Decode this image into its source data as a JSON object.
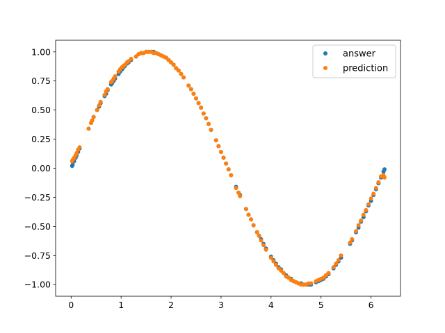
{
  "chart_data": {
    "type": "scatter",
    "title": "",
    "xlabel": "",
    "ylabel": "",
    "xlim": [
      -0.31,
      6.59
    ],
    "ylim": [
      -1.1,
      1.1
    ],
    "xticks": [
      0,
      1,
      2,
      3,
      4,
      5,
      6
    ],
    "yticks": [
      -1.0,
      -0.75,
      -0.5,
      -0.25,
      0.0,
      0.25,
      0.5,
      0.75,
      1.0
    ],
    "xtick_labels": [
      "0",
      "1",
      "2",
      "3",
      "4",
      "5",
      "6"
    ],
    "ytick_labels": [
      "−1.00",
      "−0.75",
      "−0.50",
      "−0.25",
      "0.00",
      "0.25",
      "0.50",
      "0.75",
      "1.00"
    ],
    "grid": false,
    "legend_position": "upper right",
    "series": [
      {
        "name": "answer",
        "color": "#1f77b4",
        "x": [
          0.02,
          0.03,
          0.06,
          0.09,
          0.11,
          0.14,
          0.17,
          0.35,
          0.4,
          0.42,
          0.45,
          0.52,
          0.56,
          0.59,
          0.67,
          0.7,
          0.73,
          0.8,
          0.82,
          0.85,
          0.88,
          0.95,
          0.98,
          1.02,
          1.05,
          1.08,
          1.12,
          1.15,
          1.2,
          1.3,
          1.35,
          1.4,
          1.45,
          1.5,
          1.55,
          1.6,
          1.65,
          1.7,
          1.75,
          1.8,
          1.85,
          1.9,
          1.95,
          2.0,
          2.05,
          2.1,
          2.15,
          2.2,
          2.25,
          2.35,
          2.4,
          2.45,
          2.5,
          2.55,
          2.6,
          2.65,
          2.7,
          2.75,
          2.8,
          2.9,
          2.95,
          3.0,
          3.05,
          3.1,
          3.15,
          3.2,
          3.3,
          3.35,
          3.38,
          3.5,
          3.55,
          3.6,
          3.65,
          3.72,
          3.76,
          3.8,
          3.85,
          3.9,
          4.0,
          4.05,
          4.1,
          4.15,
          4.2,
          4.25,
          4.3,
          4.35,
          4.4,
          4.45,
          4.5,
          4.55,
          4.6,
          4.65,
          4.7,
          4.75,
          4.8,
          4.9,
          4.95,
          5.0,
          5.05,
          5.1,
          5.15,
          5.25,
          5.3,
          5.35,
          5.4,
          5.58,
          5.62,
          5.7,
          5.75,
          5.8,
          5.85,
          5.9,
          5.95,
          6.0,
          6.05,
          6.1,
          6.15,
          6.2,
          6.25,
          6.27
        ],
        "y": [
          0.02,
          0.03,
          0.06,
          0.09,
          0.11,
          0.14,
          0.17,
          0.34,
          0.39,
          0.41,
          0.44,
          0.5,
          0.53,
          0.56,
          0.62,
          0.64,
          0.67,
          0.72,
          0.73,
          0.75,
          0.77,
          0.81,
          0.83,
          0.85,
          0.87,
          0.88,
          0.9,
          0.91,
          0.93,
          0.96,
          0.98,
          0.99,
          0.99,
          1.0,
          1.0,
          1.0,
          1.0,
          0.99,
          0.98,
          0.97,
          0.96,
          0.95,
          0.93,
          0.91,
          0.89,
          0.86,
          0.84,
          0.81,
          0.78,
          0.71,
          0.68,
          0.64,
          0.6,
          0.56,
          0.52,
          0.47,
          0.43,
          0.38,
          0.33,
          0.24,
          0.19,
          0.14,
          0.09,
          0.04,
          -0.01,
          -0.06,
          -0.16,
          -0.21,
          -0.23,
          -0.35,
          -0.4,
          -0.44,
          -0.49,
          -0.55,
          -0.58,
          -0.61,
          -0.65,
          -0.69,
          -0.76,
          -0.79,
          -0.82,
          -0.85,
          -0.87,
          -0.9,
          -0.92,
          -0.94,
          -0.95,
          -0.97,
          -0.98,
          -0.99,
          -0.99,
          -1.0,
          -1.0,
          -1.0,
          -1.0,
          -0.98,
          -0.97,
          -0.96,
          -0.95,
          -0.93,
          -0.91,
          -0.86,
          -0.83,
          -0.8,
          -0.77,
          -0.65,
          -0.62,
          -0.55,
          -0.51,
          -0.46,
          -0.42,
          -0.37,
          -0.32,
          -0.28,
          -0.23,
          -0.18,
          -0.13,
          -0.08,
          -0.03,
          -0.01
        ]
      },
      {
        "name": "prediction",
        "color": "#ff7f0e",
        "x": [
          0.02,
          0.03,
          0.06,
          0.09,
          0.11,
          0.14,
          0.17,
          0.35,
          0.4,
          0.42,
          0.45,
          0.52,
          0.56,
          0.59,
          0.67,
          0.7,
          0.73,
          0.8,
          0.82,
          0.85,
          0.88,
          0.95,
          0.98,
          1.02,
          1.05,
          1.08,
          1.12,
          1.15,
          1.2,
          1.3,
          1.35,
          1.4,
          1.45,
          1.5,
          1.55,
          1.6,
          1.65,
          1.7,
          1.75,
          1.8,
          1.85,
          1.9,
          1.95,
          2.0,
          2.05,
          2.1,
          2.15,
          2.2,
          2.25,
          2.35,
          2.4,
          2.45,
          2.5,
          2.55,
          2.6,
          2.65,
          2.7,
          2.75,
          2.8,
          2.9,
          2.95,
          3.0,
          3.05,
          3.1,
          3.15,
          3.2,
          3.3,
          3.35,
          3.38,
          3.5,
          3.55,
          3.6,
          3.65,
          3.72,
          3.76,
          3.8,
          3.85,
          3.9,
          4.0,
          4.05,
          4.1,
          4.15,
          4.2,
          4.25,
          4.3,
          4.35,
          4.4,
          4.45,
          4.5,
          4.55,
          4.6,
          4.65,
          4.7,
          4.75,
          4.8,
          4.9,
          4.95,
          5.0,
          5.05,
          5.1,
          5.15,
          5.25,
          5.3,
          5.35,
          5.4,
          5.58,
          5.62,
          5.7,
          5.75,
          5.8,
          5.85,
          5.9,
          5.95,
          6.0,
          6.05,
          6.1,
          6.15,
          6.2,
          6.25,
          6.27
        ],
        "y": [
          0.06,
          0.07,
          0.09,
          0.11,
          0.13,
          0.16,
          0.18,
          0.34,
          0.39,
          0.41,
          0.44,
          0.5,
          0.54,
          0.57,
          0.63,
          0.66,
          0.68,
          0.74,
          0.75,
          0.77,
          0.79,
          0.83,
          0.85,
          0.87,
          0.88,
          0.89,
          0.91,
          0.92,
          0.94,
          0.96,
          0.98,
          0.99,
          0.99,
          1.0,
          1.0,
          1.0,
          0.99,
          0.99,
          0.98,
          0.97,
          0.96,
          0.95,
          0.93,
          0.91,
          0.89,
          0.86,
          0.84,
          0.81,
          0.78,
          0.71,
          0.68,
          0.64,
          0.6,
          0.56,
          0.52,
          0.47,
          0.43,
          0.38,
          0.33,
          0.24,
          0.19,
          0.14,
          0.09,
          0.04,
          -0.01,
          -0.06,
          -0.17,
          -0.21,
          -0.24,
          -0.35,
          -0.4,
          -0.44,
          -0.49,
          -0.55,
          -0.58,
          -0.62,
          -0.66,
          -0.7,
          -0.77,
          -0.8,
          -0.83,
          -0.86,
          -0.88,
          -0.9,
          -0.93,
          -0.94,
          -0.96,
          -0.97,
          -0.98,
          -0.99,
          -1.0,
          -1.0,
          -1.0,
          -0.99,
          -0.99,
          -0.97,
          -0.96,
          -0.95,
          -0.94,
          -0.92,
          -0.9,
          -0.85,
          -0.82,
          -0.79,
          -0.75,
          -0.64,
          -0.61,
          -0.54,
          -0.49,
          -0.45,
          -0.4,
          -0.36,
          -0.31,
          -0.26,
          -0.22,
          -0.17,
          -0.12,
          -0.07,
          -0.06,
          -0.08
        ]
      }
    ]
  }
}
